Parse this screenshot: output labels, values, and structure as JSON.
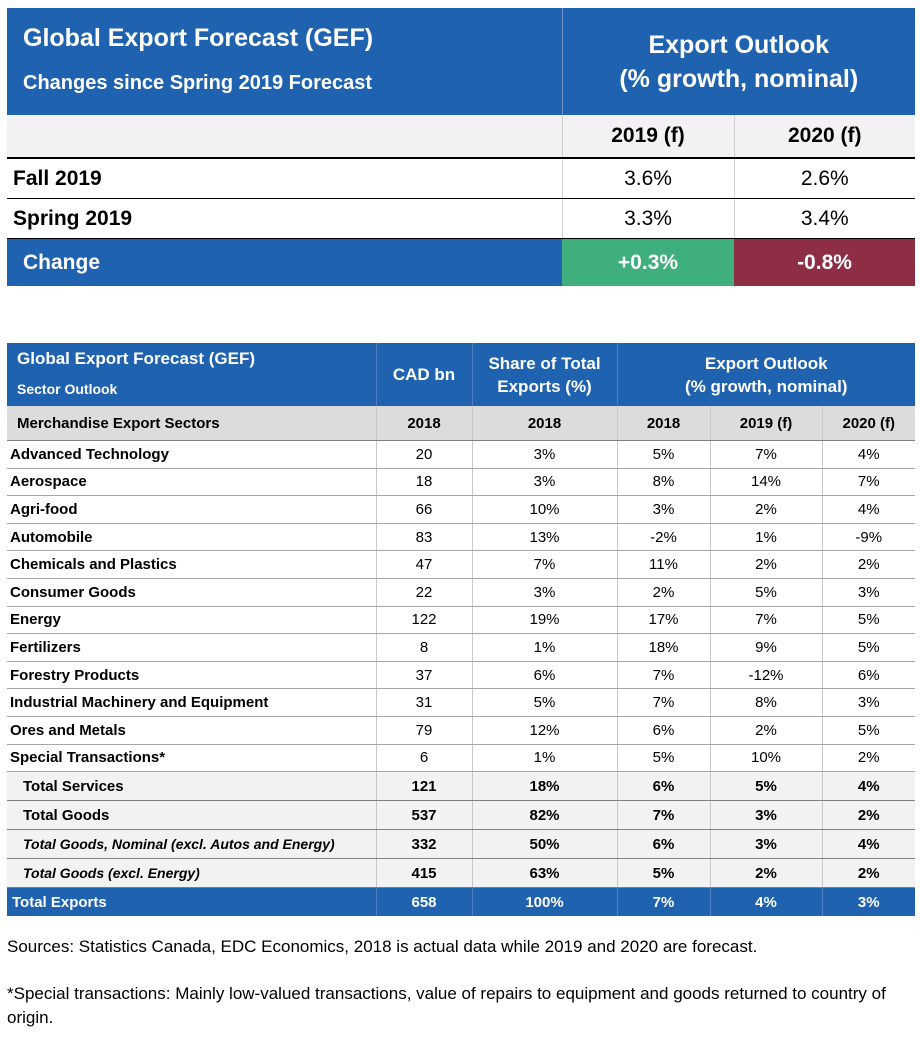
{
  "summary": {
    "title": "Global Export Forecast (GEF)",
    "subtitle": "Changes since Spring 2019 Forecast",
    "outlook_line1": "Export Outlook",
    "outlook_line2": "(% growth, nominal)",
    "col1": "2019 (f)",
    "col2": "2020 (f)",
    "rows": [
      {
        "label": "Fall 2019",
        "v1": "3.6%",
        "v2": "2.6%"
      },
      {
        "label": "Spring 2019",
        "v1": "3.3%",
        "v2": "3.4%"
      }
    ],
    "change": {
      "label": "Change",
      "v1": "+0.3%",
      "v2": "-0.8%"
    },
    "colors": {
      "header": "#1f63b0",
      "positive": "#3faf7d",
      "negative": "#8e2e45"
    }
  },
  "sector": {
    "title": "Global Export Forecast (GEF)",
    "subtitle": "Sector Outlook",
    "cad_label": "CAD bn",
    "share_line1": "Share of Total",
    "share_line2": "Exports (%)",
    "outlook_line1": "Export Outlook",
    "outlook_line2": "(% growth, nominal)",
    "subheader": [
      "Merchandise Export Sectors",
      "2018",
      "2018",
      "2018",
      "2019 (f)",
      "2020 (f)"
    ],
    "rows": [
      [
        "Advanced Technology",
        "20",
        "3%",
        "5%",
        "7%",
        "4%"
      ],
      [
        "Aerospace",
        "18",
        "3%",
        "8%",
        "14%",
        "7%"
      ],
      [
        "Agri-food",
        "66",
        "10%",
        "3%",
        "2%",
        "4%"
      ],
      [
        "Automobile",
        "83",
        "13%",
        "-2%",
        "1%",
        "-9%"
      ],
      [
        "Chemicals and Plastics",
        "47",
        "7%",
        "11%",
        "2%",
        "2%"
      ],
      [
        "Consumer Goods",
        "22",
        "3%",
        "2%",
        "5%",
        "3%"
      ],
      [
        "Energy",
        "122",
        "19%",
        "17%",
        "7%",
        "5%"
      ],
      [
        "Fertilizers",
        "8",
        "1%",
        "18%",
        "9%",
        "5%"
      ],
      [
        "Forestry Products",
        "37",
        "6%",
        "7%",
        "-12%",
        "6%"
      ],
      [
        "Industrial Machinery and Equipment",
        "31",
        "5%",
        "7%",
        "8%",
        "3%"
      ],
      [
        "Ores and Metals",
        "79",
        "12%",
        "6%",
        "2%",
        "5%"
      ],
      [
        "Special Transactions*",
        "6",
        "1%",
        "5%",
        "10%",
        "2%"
      ]
    ],
    "totals": [
      [
        "Total Services",
        "121",
        "18%",
        "6%",
        "5%",
        "4%"
      ],
      [
        "Total Goods",
        "537",
        "82%",
        "7%",
        "3%",
        "2%"
      ]
    ],
    "italic_totals": [
      [
        "Total Goods, Nominal (excl. Autos and Energy)",
        "332",
        "50%",
        "6%",
        "3%",
        "4%"
      ],
      [
        "Total Goods (excl. Energy)",
        "415",
        "63%",
        "5%",
        "2%",
        "2%"
      ]
    ],
    "grand_total": [
      "Total Exports",
      "658",
      "100%",
      "7%",
      "4%",
      "3%"
    ]
  },
  "notes": {
    "sources": "Sources: Statistics Canada, EDC Economics, 2018 is actual data while 2019 and 2020 are forecast.",
    "footnote": "*Special transactions: Mainly low-valued transactions, value of repairs to equipment and goods returned to country of origin."
  }
}
